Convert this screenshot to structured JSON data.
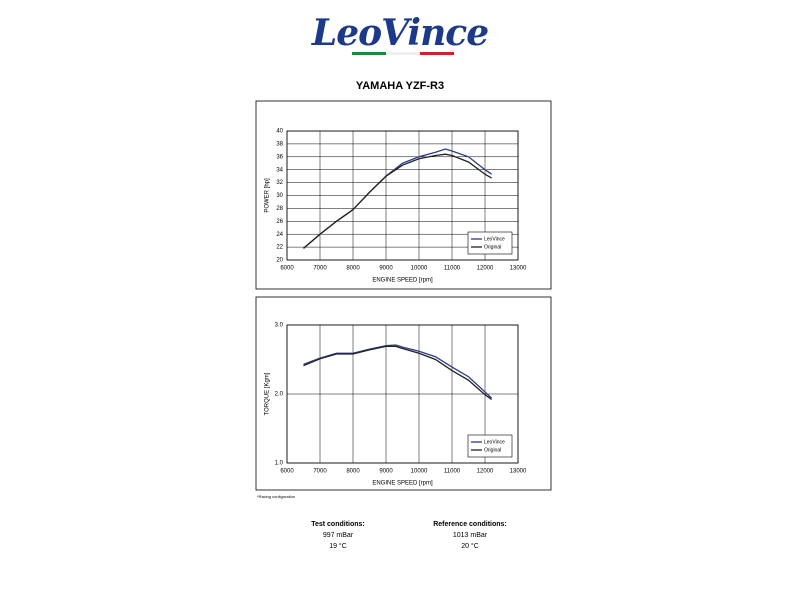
{
  "logo": "LeoVince",
  "title": "YAMAHA YZF-R3",
  "footnote": "*Racing configuration",
  "test_conditions": {
    "heading": "Test conditions:",
    "pressure": "997 mBar",
    "temperature": "19 °C"
  },
  "reference_conditions": {
    "heading": "Reference conditions:",
    "pressure": "1013 mBar",
    "temperature": "20 °C"
  },
  "chart_data": [
    {
      "type": "line",
      "xlabel": "ENGINE SPEED [rpm]",
      "ylabel": "POWER [hp]",
      "x": [
        6500,
        7000,
        7500,
        8000,
        8500,
        9000,
        9500,
        10000,
        10500,
        10800,
        11000,
        11500,
        12000,
        12200
      ],
      "series": [
        {
          "name": "LeoVince",
          "color": "#2b3a8f",
          "values": [
            21.8,
            24.0,
            26.0,
            27.8,
            30.5,
            33.0,
            35.0,
            36.0,
            36.7,
            37.2,
            36.9,
            36.0,
            34.0,
            33.3
          ]
        },
        {
          "name": "Original",
          "color": "#222222",
          "values": [
            21.8,
            24.0,
            26.0,
            27.8,
            30.5,
            33.0,
            34.7,
            35.7,
            36.2,
            36.4,
            36.2,
            35.2,
            33.3,
            32.7
          ]
        }
      ],
      "xlim": [
        6000,
        13000
      ],
      "xticks": [
        6000,
        7000,
        8000,
        9000,
        10000,
        11000,
        12000,
        13000
      ],
      "ylim": [
        20,
        40
      ],
      "yticks": [
        20,
        22,
        24,
        26,
        28,
        30,
        32,
        34,
        36,
        38,
        40
      ],
      "grid": true,
      "legend": "lower right"
    },
    {
      "type": "line",
      "xlabel": "ENGINE SPEED [rpm]",
      "ylabel": "TORQUE [Kgm]",
      "x": [
        6500,
        7000,
        7500,
        8000,
        8500,
        9000,
        9300,
        9500,
        10000,
        10500,
        11000,
        11500,
        12000,
        12200
      ],
      "series": [
        {
          "name": "LeoVince",
          "color": "#2b3a8f",
          "values": [
            2.43,
            2.52,
            2.59,
            2.59,
            2.65,
            2.7,
            2.71,
            2.68,
            2.62,
            2.54,
            2.39,
            2.25,
            2.03,
            1.94
          ]
        },
        {
          "name": "Original",
          "color": "#222222",
          "values": [
            2.41,
            2.51,
            2.58,
            2.58,
            2.64,
            2.69,
            2.69,
            2.66,
            2.59,
            2.5,
            2.34,
            2.2,
            1.99,
            1.92
          ]
        }
      ],
      "xlim": [
        6000,
        13000
      ],
      "xticks": [
        6000,
        7000,
        8000,
        9000,
        10000,
        11000,
        12000,
        13000
      ],
      "ylim": [
        1.0,
        3.0
      ],
      "yticks": [
        {
          "value": 1,
          "label": "1.0"
        },
        {
          "value": 2,
          "label": "2.0"
        },
        {
          "value": 3,
          "label": "3.0"
        }
      ],
      "grid": true,
      "legend": "lower right"
    }
  ]
}
